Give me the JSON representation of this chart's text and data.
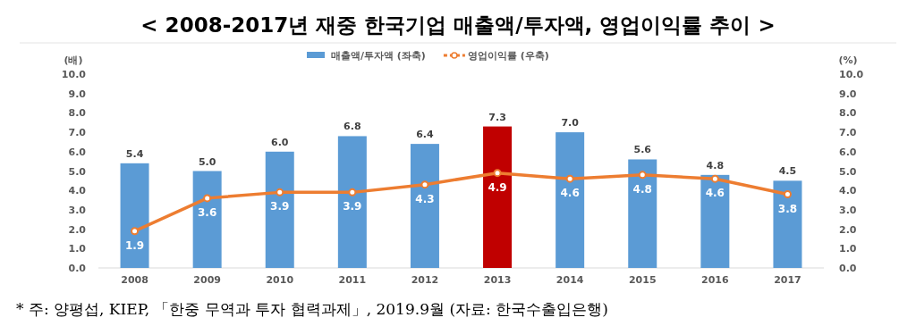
{
  "chart_data": {
    "type": "bar",
    "title": "< 2008-2017년 재중 한국기업 매출액/투자액, 영업이익률 추이 >",
    "categories": [
      "2008",
      "2009",
      "2010",
      "2011",
      "2012",
      "2013",
      "2014",
      "2015",
      "2016",
      "2017"
    ],
    "series": [
      {
        "name": "매출액/투자액 (좌축)",
        "color": "#5b9bd5",
        "colors": [
          "#5b9bd5",
          "#5b9bd5",
          "#5b9bd5",
          "#5b9bd5",
          "#5b9bd5",
          "#c00000",
          "#5b9bd5",
          "#5b9bd5",
          "#5b9bd5",
          "#5b9bd5"
        ],
        "values": [
          5.4,
          5.0,
          6.0,
          6.8,
          6.4,
          7.3,
          7.0,
          5.6,
          4.8,
          4.5
        ],
        "value_labels": [
          "5.4",
          "5.0",
          "6.0",
          "6.8",
          "6.4",
          "7.3",
          "7.0",
          "5.6",
          "4.8",
          "4.5"
        ]
      },
      {
        "name": "영업이익률 (우축)",
        "type": "line",
        "axis": "y2",
        "color": "#ed7d31",
        "marker": "circle",
        "values": [
          1.9,
          3.6,
          3.9,
          3.9,
          4.3,
          4.9,
          4.6,
          4.8,
          4.6,
          3.8
        ],
        "value_labels": [
          "1.9",
          "3.6",
          "3.9",
          "3.9",
          "4.3",
          "4.9",
          "4.6",
          "4.8",
          "4.6",
          "3.8"
        ]
      }
    ],
    "ylabel": "(배)",
    "y2label": "(%)",
    "ylim": [
      0,
      10
    ],
    "y2lim": [
      0,
      10
    ],
    "yticks": [
      {
        "value": 0,
        "label": "0.0"
      },
      {
        "value": 1,
        "label": "1.0"
      },
      {
        "value": 2,
        "label": "2.0"
      },
      {
        "value": 3,
        "label": "3.0"
      },
      {
        "value": 4,
        "label": "4.0"
      },
      {
        "value": 5,
        "label": "5.0"
      },
      {
        "value": 6,
        "label": "6.0"
      },
      {
        "value": 7,
        "label": "7.0"
      },
      {
        "value": 8,
        "label": "8.0"
      },
      {
        "value": 9,
        "label": "9.0"
      },
      {
        "value": 10,
        "label": "10.0"
      }
    ],
    "y2ticks": [
      {
        "value": 0,
        "label": "0.0"
      },
      {
        "value": 1,
        "label": "1.0"
      },
      {
        "value": 2,
        "label": "2.0"
      },
      {
        "value": 3,
        "label": "3.0"
      },
      {
        "value": 4,
        "label": "4.0"
      },
      {
        "value": 5,
        "label": "5.0"
      },
      {
        "value": 6,
        "label": "6.0"
      },
      {
        "value": 7,
        "label": "7.0"
      },
      {
        "value": 8,
        "label": "8.0"
      },
      {
        "value": 9,
        "label": "9.0"
      },
      {
        "value": 10,
        "label": "10.0"
      }
    ],
    "legend": "top",
    "grid": false,
    "annotations": [
      "* 주: 양평섭, KIEP, 「한중 무역과 투자 협력과제」, 2019.9월 (자료: 한국수출입은행)"
    ]
  }
}
